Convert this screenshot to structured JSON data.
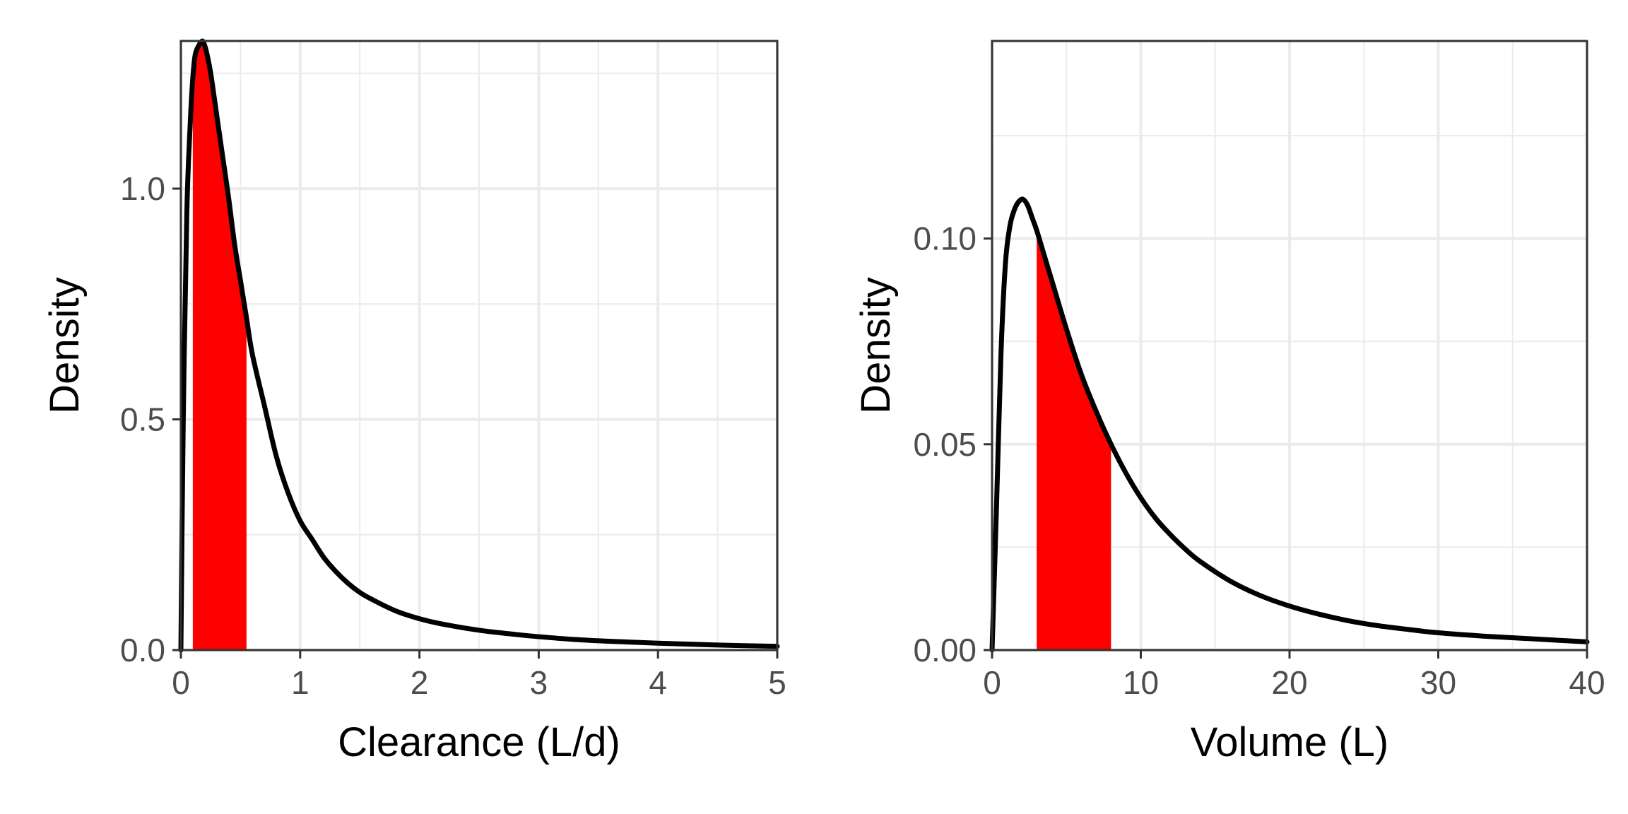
{
  "chart_data": [
    {
      "type": "line",
      "xlabel": "Clearance (L/d)",
      "ylabel": "Density",
      "xlim": [
        0,
        5
      ],
      "ylim": [
        0,
        1.32
      ],
      "x_ticks": [
        "0",
        "1",
        "2",
        "3",
        "4",
        "5"
      ],
      "y_ticks": [
        "0.0",
        "0.5",
        "1.0"
      ],
      "grid": true,
      "legend": "none",
      "line_color": "#000000",
      "fill_color": "#ff0000",
      "shaded_interval": [
        0.1,
        0.55
      ],
      "x": [
        0,
        0.02,
        0.05,
        0.08,
        0.1,
        0.12,
        0.15,
        0.18,
        0.2,
        0.22,
        0.25,
        0.3,
        0.35,
        0.4,
        0.45,
        0.5,
        0.55,
        0.6,
        0.7,
        0.8,
        0.9,
        1.0,
        1.1,
        1.2,
        1.3,
        1.4,
        1.5,
        1.6,
        1.8,
        2.0,
        2.2,
        2.5,
        2.8,
        3.0,
        3.3,
        3.6,
        4.0,
        4.5,
        5.0
      ],
      "y": [
        0,
        0.5,
        0.95,
        1.15,
        1.24,
        1.29,
        1.31,
        1.32,
        1.31,
        1.29,
        1.25,
        1.16,
        1.07,
        0.98,
        0.88,
        0.8,
        0.72,
        0.64,
        0.53,
        0.42,
        0.34,
        0.28,
        0.24,
        0.2,
        0.17,
        0.145,
        0.125,
        0.11,
        0.085,
        0.068,
        0.056,
        0.043,
        0.034,
        0.029,
        0.023,
        0.019,
        0.015,
        0.011,
        0.008
      ]
    },
    {
      "type": "line",
      "xlabel": "Volume (L)",
      "ylabel": "Density",
      "xlim": [
        0,
        40
      ],
      "ylim": [
        0,
        0.148
      ],
      "x_ticks": [
        "0",
        "10",
        "20",
        "30",
        "40"
      ],
      "y_ticks": [
        "0.00",
        "0.05",
        "0.10"
      ],
      "grid": true,
      "legend": "none",
      "line_color": "#000000",
      "fill_color": "#ff0000",
      "shaded_interval": [
        3,
        8
      ],
      "x": [
        0,
        0.3,
        0.6,
        0.9,
        1.2,
        1.5,
        1.8,
        2.1,
        2.4,
        2.7,
        3.0,
        3.5,
        4.0,
        5.0,
        6.0,
        7.0,
        8.0,
        9.0,
        10.0,
        11.0,
        12.0,
        13.0,
        14.0,
        16.0,
        18.0,
        20.0,
        22.0,
        24.0,
        26.0,
        28.0,
        30.0,
        33.0,
        36.0,
        40.0
      ],
      "y": [
        0,
        0.035,
        0.072,
        0.094,
        0.103,
        0.107,
        0.109,
        0.1095,
        0.108,
        0.105,
        0.102,
        0.096,
        0.09,
        0.078,
        0.067,
        0.058,
        0.05,
        0.043,
        0.037,
        0.032,
        0.028,
        0.0245,
        0.0215,
        0.0168,
        0.0133,
        0.0107,
        0.0087,
        0.0071,
        0.0059,
        0.005,
        0.0042,
        0.0034,
        0.0028,
        0.002
      ]
    }
  ]
}
